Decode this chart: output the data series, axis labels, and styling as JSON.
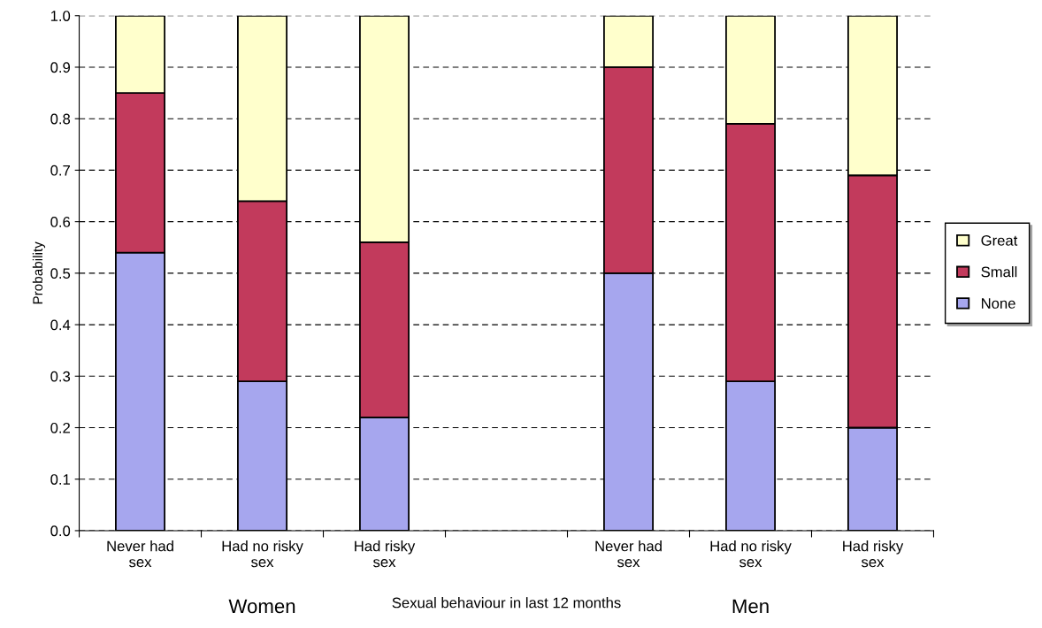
{
  "chart_data": {
    "type": "bar",
    "stacked": true,
    "xlabel": "Sexual behaviour in last 12 months",
    "ylabel": "Probability",
    "categories": [
      "Never had sex",
      "Had no risky sex",
      "Had risky sex",
      null,
      "Never had sex",
      "Had no risky sex",
      "Had risky sex"
    ],
    "series": [
      {
        "name": "None",
        "color": "#a6a6ee",
        "values": [
          0.54,
          0.29,
          0.22,
          null,
          0.5,
          0.29,
          0.2
        ]
      },
      {
        "name": "Small",
        "color": "#c23a5c",
        "values": [
          0.31,
          0.35,
          0.34,
          null,
          0.4,
          0.5,
          0.49
        ]
      },
      {
        "name": "Great",
        "color": "#ffffcc",
        "values": [
          0.15,
          0.36,
          0.44,
          null,
          0.1,
          0.21,
          0.31
        ]
      }
    ],
    "ylim": [
      0,
      1
    ],
    "yticks": [
      {
        "value": 0,
        "label": "0.0"
      },
      0.1,
      0.2,
      0.3,
      0.4,
      0.5,
      0.6,
      0.7,
      0.8,
      0.9,
      {
        "value": 1,
        "label": "1.0"
      }
    ],
    "grid": "y",
    "legend": "right",
    "annotations": [
      "Women",
      "Men"
    ]
  }
}
